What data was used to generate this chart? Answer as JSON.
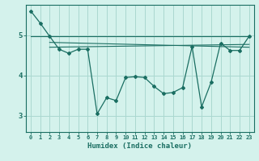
{
  "xlabel": "Humidex (Indice chaleur)",
  "ylabel": "",
  "background_color": "#d4f2ec",
  "grid_color": "#aad8d0",
  "line_color": "#1a6e62",
  "xlim": [
    -0.5,
    23.5
  ],
  "ylim": [
    2.6,
    5.75
  ],
  "yticks": [
    3,
    4,
    5
  ],
  "xticks": [
    0,
    1,
    2,
    3,
    4,
    5,
    6,
    7,
    8,
    9,
    10,
    11,
    12,
    13,
    14,
    15,
    16,
    17,
    18,
    19,
    20,
    21,
    22,
    23
  ],
  "line1_x": [
    0,
    1,
    2,
    3,
    4,
    5,
    6,
    7,
    8,
    9,
    10,
    11,
    12,
    13,
    14,
    15,
    16,
    17,
    18,
    19,
    20,
    21,
    22,
    23
  ],
  "line1_y": [
    5.6,
    5.3,
    4.97,
    4.65,
    4.55,
    4.65,
    4.65,
    3.05,
    3.45,
    3.38,
    3.95,
    3.97,
    3.95,
    3.73,
    3.55,
    3.58,
    3.7,
    4.72,
    3.22,
    3.83,
    4.8,
    4.62,
    4.62,
    4.97
  ],
  "line2_x": [
    0,
    23
  ],
  "line2_y": [
    4.97,
    4.97
  ],
  "line3_x": [
    2,
    23
  ],
  "line3_y": [
    4.82,
    4.7
  ],
  "line4_x": [
    2,
    23
  ],
  "line4_y": [
    4.7,
    4.77
  ]
}
